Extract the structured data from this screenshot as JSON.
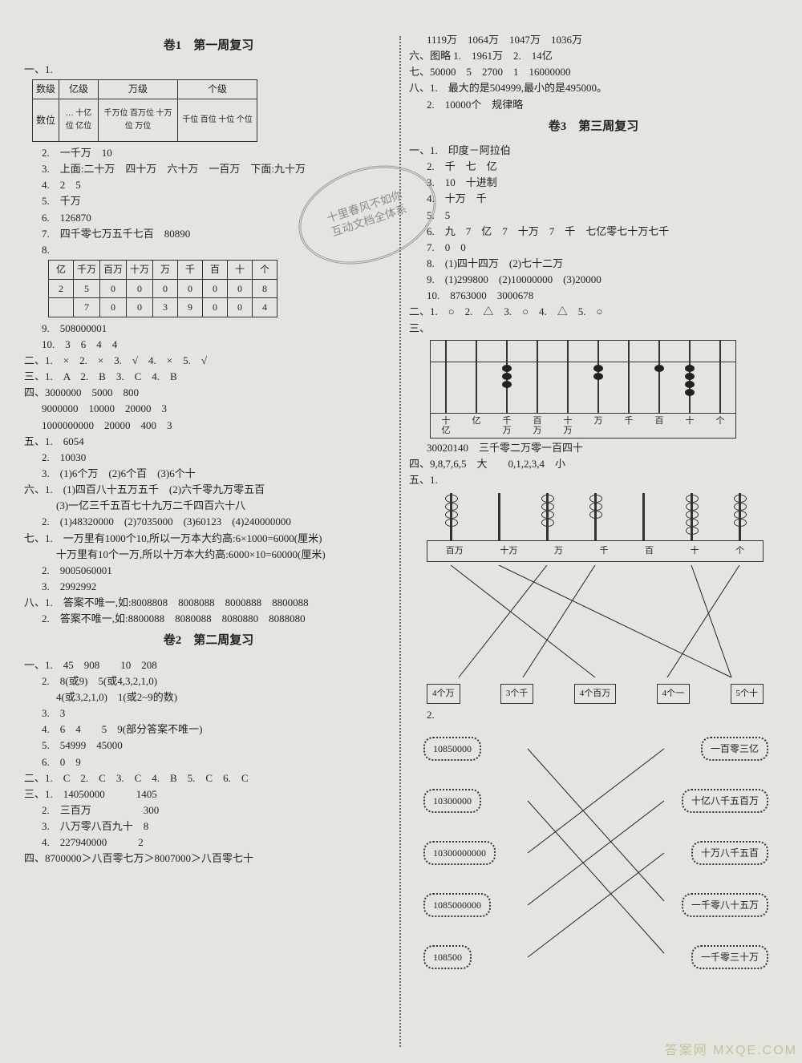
{
  "left": {
    "title1": "卷1　第一周复习",
    "t1_top": {
      "row0": [
        "数级",
        "亿级",
        "万级",
        "个级"
      ],
      "row1_0": "数位",
      "row1_1": "… 十亿位 亿位",
      "row1_2": "千万位 百万位 十万位 万位",
      "row1_3": "千位 百位 十位 个位"
    },
    "s1_1": "一、1.",
    "s1_2": "2.　一千万　10",
    "s1_3": "3.　上面:二十万　四十万　六十万　一百万　下面:九十万",
    "s1_4": "4.　2　5",
    "s1_5": "5.　千万",
    "s1_6": "6.　126870",
    "s1_7": "7.　四千零七万五千七百　80890",
    "s1_8": "8.",
    "t2": {
      "h": [
        "亿",
        "千万",
        "百万",
        "十万",
        "万",
        "千",
        "百",
        "十",
        "个"
      ],
      "r1": [
        "2",
        "5",
        "0",
        "0",
        "0",
        "0",
        "0",
        "0",
        "8"
      ],
      "r2": [
        "",
        "7",
        "0",
        "0",
        "3",
        "9",
        "0",
        "0",
        "4"
      ]
    },
    "s1_9": "9.　508000001",
    "s1_10": "10.　3　6　4　4",
    "s2": "二、1.　×　2.　×　3.　√　4.　×　5.　√",
    "s3": "三、1.　A　2.　B　3.　C　4.　B",
    "s4a": "四、3000000　5000　800",
    "s4b": "9000000　10000　20000　3",
    "s4c": "1000000000　20000　400　3",
    "s5": "五、1.　6054",
    "s5_2": "2.　10030",
    "s5_3": "3.　(1)6个万　(2)6个百　(3)6个十",
    "s6": "六、1.　(1)四百八十五万五千　(2)六千零九万零五百",
    "s6b": "(3)一亿三千五百七十九万二千四百六十八",
    "s6_2": "2.　(1)48320000　(2)7035000　(3)60123　(4)240000000",
    "s7": "七、1.　一万里有1000个10,所以一万本大约高:6×1000=6000(厘米)",
    "s7b": "十万里有10个一万,所以十万本大约高:6000×10=60000(厘米)",
    "s7_2": "2.　9005060001",
    "s7_3": "3.　2992992",
    "s8": "八、1.　答案不唯一,如:8008808　8008088　8000888　8800088",
    "s8_2": "2.　答案不唯一,如:8800088　8080088　8080880　8088080",
    "title2": "卷2　第二周复习",
    "b1": "一、1.　45　908　　10　208",
    "b1_2": "2.　8(或9)　5(或4,3,2,1,0)",
    "b1_2b": "4(或3,2,1,0)　1(或2~9的数)",
    "b1_3": "3.　3",
    "b1_4": "4.　6　4　　5　9(部分答案不唯一)",
    "b1_5": "5.　54999　45000",
    "b1_6": "6.　0　9",
    "b2": "二、1.　C　2.　C　3.　C　4.　B　5.　C　6.　C",
    "b3": "三、1.　14050000　　　1405",
    "b3_2": "2.　三百万　　　　　300",
    "b3_3": "3.　八万零八百九十　8",
    "b3_4": "4.　227940000　　　2",
    "b4": "四、8700000＞八百零七万＞8007000＞八百零七十"
  },
  "right": {
    "r_top1": "1119万　1064万　1047万　1036万",
    "r_top2": "六、图略 1.　1961万　2.　14亿",
    "r_top3": "七、50000　5　2700　1　16000000",
    "r_top4": "八、1.　最大的是504999,最小的是495000。",
    "r_top5": "2.　10000个　规律略",
    "title3": "卷3　第三周复习",
    "c1": "一、1.　印度－阿拉伯",
    "c1_2": "2.　千　七　亿",
    "c1_3": "3.　10　十进制",
    "c1_4": "4.　十万　千",
    "c1_5": "5.　5",
    "c1_6": "6.　九　7　亿　7　十万　7　千　七亿零七十万七千",
    "c1_7": "7.　0　0",
    "c1_8": "8.　(1)四十四万　(2)七十二万",
    "c1_9": "9.　(1)299800　(2)10000000　(3)20000",
    "c1_10": "10.　8763000　3000678",
    "c2": "二、1.　○　2.　△　3.　○　4.　△　5.　○",
    "c3": "三、",
    "ab_labels": [
      "十亿",
      "亿",
      "千万",
      "百万",
      "十万",
      "万",
      "千",
      "百",
      "十",
      "个"
    ],
    "ab_below": "30020140　三千零二万零一百四十",
    "c4": "四、9,8,7,6,5　大　　0,1,2,3,4　小",
    "c5": "五、1.",
    "ab2_labels": [
      "百万",
      "十万",
      "万",
      "千",
      "百",
      "十",
      "个"
    ],
    "boxes": [
      "4个万",
      "3个千",
      "4个百万",
      "4个一",
      "5个十"
    ],
    "q2": "2.",
    "bub_l": [
      "10850000",
      "10300000",
      "10300000000",
      "1085000000",
      "108500"
    ],
    "bub_r": [
      "一百零三亿",
      "十亿八千五百万",
      "十万八千五百",
      "一千零八十五万",
      "一千零三十万"
    ]
  },
  "stamp_l1": "十里春风不如你",
  "stamp_l2": "互动文档全体系",
  "wm": "答案网  MXQE.COM"
}
